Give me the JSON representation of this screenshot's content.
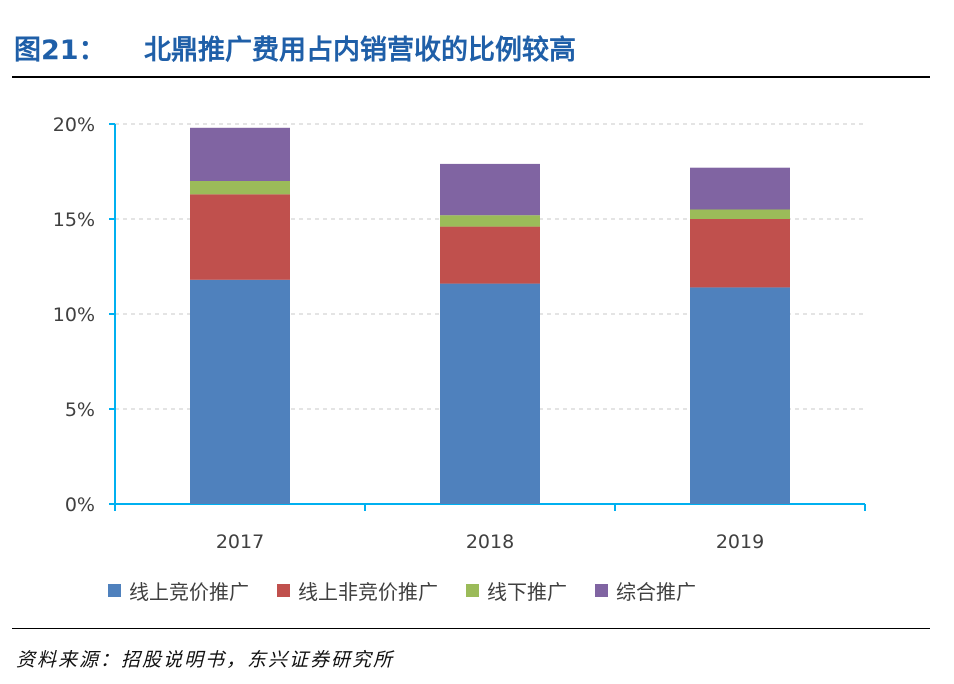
{
  "title": {
    "fig_no": "图21：",
    "text": "北鼎推广费用占内销营收的比例较高"
  },
  "source": "资料来源：招股说明书，东兴证券研究所",
  "chart_data": {
    "type": "bar",
    "stacked": true,
    "categories": [
      "2017",
      "2018",
      "2019"
    ],
    "series": [
      {
        "name": "线上竞价推广",
        "color": "#4f81bd",
        "values": [
          11.8,
          11.6,
          11.4
        ]
      },
      {
        "name": "线上非竞价推广",
        "color": "#c0504d",
        "values": [
          4.5,
          3.0,
          3.6
        ]
      },
      {
        "name": "线下推广",
        "color": "#9bbb59",
        "values": [
          0.7,
          0.6,
          0.5
        ]
      },
      {
        "name": "综合推广",
        "color": "#8064a2",
        "values": [
          2.8,
          2.7,
          2.2
        ]
      }
    ],
    "ylim": [
      0,
      20
    ],
    "yticks": [
      0,
      5,
      10,
      15,
      20
    ],
    "ytick_labels": [
      "0%",
      "5%",
      "10%",
      "15%",
      "20%"
    ],
    "grid": true,
    "legend_position": "bottom",
    "axis_color": "#00b0f0"
  }
}
